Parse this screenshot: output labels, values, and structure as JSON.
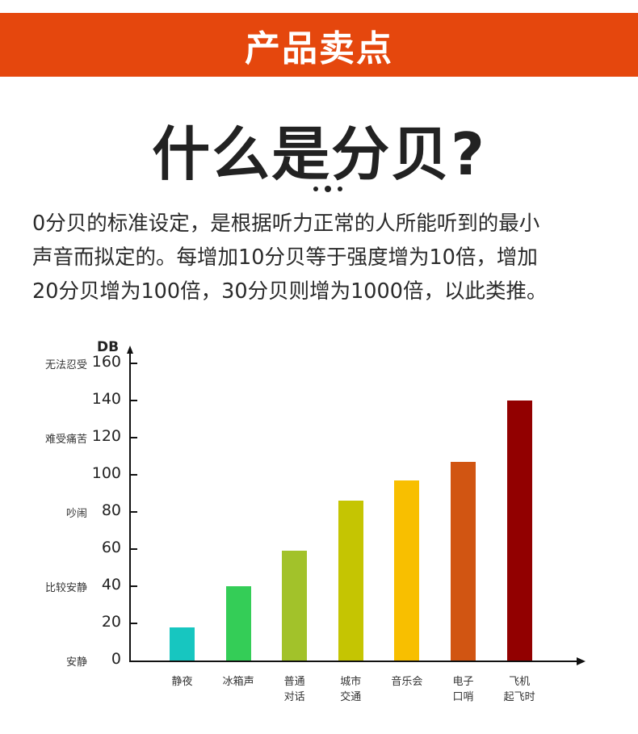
{
  "banner": {
    "title": "产品卖点",
    "color": "#e5470d"
  },
  "headline": "什么是分贝?",
  "paragraph": {
    "lines": [
      "0分贝的标准设定，是根据听力正常的人所能听到的最小",
      "声音而拟定的。每增加10分贝等于强度增为10倍，增加",
      "20分贝增为100倍，30分贝则增为1000倍，以此类推。"
    ]
  },
  "chart_data": {
    "type": "bar",
    "title": "",
    "xlabel": "",
    "ylabel": "DB",
    "ylim": [
      0,
      160
    ],
    "yticks": [
      0,
      20,
      40,
      60,
      80,
      100,
      120,
      140,
      160
    ],
    "grid": false,
    "legend": null,
    "level_labels": [
      {
        "value": 160,
        "label": "无法忍受"
      },
      {
        "value": 120,
        "label": "难受痛苦"
      },
      {
        "value": 80,
        "label": "吵闹"
      },
      {
        "value": 40,
        "label": "比较安静"
      },
      {
        "value": 0,
        "label": "安静"
      }
    ],
    "categories": [
      "静夜",
      "冰箱声",
      "普通对话",
      "城市交通",
      "音乐会",
      "电子口哨",
      "飞机起飞时"
    ],
    "category_lines": [
      [
        "静夜"
      ],
      [
        "冰箱声"
      ],
      [
        "普通",
        "对话"
      ],
      [
        "城市",
        "交通"
      ],
      [
        "音乐会"
      ],
      [
        "电子",
        "口哨"
      ],
      [
        "飞机",
        "起飞时"
      ]
    ],
    "values": [
      18,
      40,
      59,
      86,
      97,
      107,
      140
    ],
    "colors": [
      "#17c6c0",
      "#34cd57",
      "#a2c22a",
      "#c5c502",
      "#f8bf00",
      "#d15512",
      "#920000"
    ]
  }
}
